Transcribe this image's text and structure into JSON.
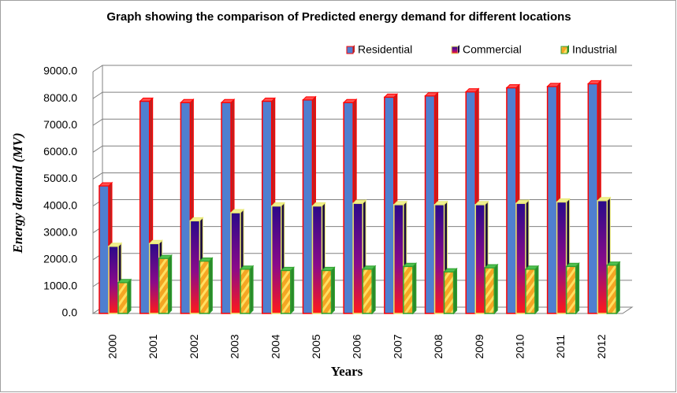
{
  "chart_data": {
    "type": "bar",
    "title": "Graph showing the comparison of Predicted energy demand for different locations",
    "x_label": "Years",
    "y_label": "Energy demand (MV)",
    "categories": [
      "2000",
      "2001",
      "2002",
      "2003",
      "2004",
      "2005",
      "2006",
      "2007",
      "2008",
      "2009",
      "2010",
      "2011",
      "2012"
    ],
    "series": [
      {
        "name": "Residential",
        "color": "#4f7fd0",
        "values": [
          4750,
          7900,
          7850,
          7850,
          7900,
          7950,
          7850,
          8050,
          8100,
          8250,
          8400,
          8450,
          8550
        ]
      },
      {
        "name": "Commercial",
        "color": "#2a0a8a",
        "values": [
          2500,
          2600,
          3450,
          3750,
          4000,
          4000,
          4100,
          4050,
          4050,
          4050,
          4100,
          4150,
          4200
        ]
      },
      {
        "name": "Industrial",
        "color": "#f5a623",
        "values": [
          1150,
          2050,
          1950,
          1650,
          1600,
          1600,
          1650,
          1750,
          1550,
          1700,
          1650,
          1750,
          1800
        ]
      }
    ],
    "ylim": [
      0,
      9000
    ],
    "yticks": [
      {
        "value": 0,
        "label": "0.0"
      },
      {
        "value": 1000,
        "label": "1000.0"
      },
      {
        "value": 2000,
        "label": "2000.0"
      },
      {
        "value": 3000,
        "label": "3000.0"
      },
      {
        "value": 4000,
        "label": "4000.0"
      },
      {
        "value": 5000,
        "label": "5000.0"
      },
      {
        "value": 6000,
        "label": "6000.0"
      },
      {
        "value": 7000,
        "label": "7000.0"
      },
      {
        "value": 8000,
        "label": "8000.0"
      },
      {
        "value": 9000,
        "label": "9000.0"
      }
    ],
    "grid": true,
    "legend": "top-right"
  }
}
